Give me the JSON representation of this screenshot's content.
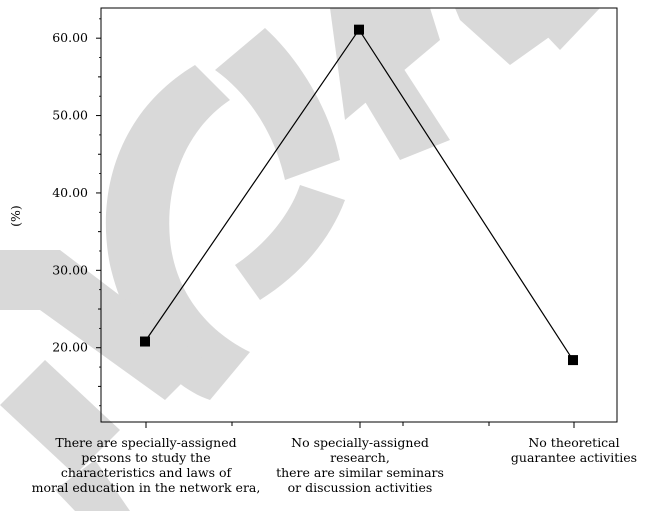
{
  "chart_data": {
    "type": "line",
    "ylabel": "(%)",
    "ylim": [
      10.4,
      63.9
    ],
    "yticks": [
      20,
      30,
      40,
      50,
      60
    ],
    "ytick_labels": [
      "20.00",
      "30.00",
      "40.00",
      "50.00",
      "60.00"
    ],
    "categories": [
      "There are specially-assigned persons to study the characteristics and laws of moral education in the network era,",
      "No specially-assigned research, there are similar seminars or discussion activities",
      "No theoretical guarantee activities"
    ],
    "category_lines": [
      [
        "There are specially-assigned",
        "persons to study the",
        "characteristics and laws of",
        "moral education in the network era,"
      ],
      [
        "No specially-assigned",
        "research,",
        "there are similar seminars",
        "or discussion activities"
      ],
      [
        "No theoretical",
        "guarantee activities"
      ]
    ],
    "series": [
      {
        "values": [
          20.8,
          61.1,
          18.4
        ]
      }
    ],
    "marker": "square",
    "grid": false,
    "line_color": "#000000",
    "watermark_text": "RETRACTED",
    "watermark_color": "#d9d9d9"
  }
}
